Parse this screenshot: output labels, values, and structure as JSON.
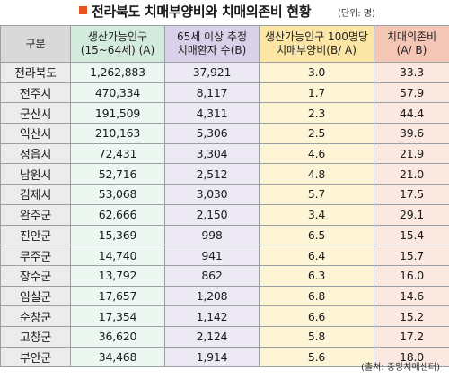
{
  "title": "전라북도 치매부양비와 치매의존비 현황",
  "unit": "(단위: 명)",
  "colors": {
    "title_marker": "#e8531f",
    "gu_header": "#d9d9d9",
    "pop_header": "#d3ebdc",
    "patients_header": "#d8d1e9",
    "ratio_header": "#fbe6a6",
    "dependency_header": "#f4c6b6"
  },
  "header": {
    "gu": "구분",
    "pop_line1": "생산가능인구",
    "pop_line2": "(15~64세) (A)",
    "patients_line1": "65세 이상 추정",
    "patients_line2": "치매환자 수(B)",
    "ratio_line1": "생산가능인구 100명당",
    "ratio_line2": "치매부양비(B/ A)",
    "dep_line1": "치매의존비",
    "dep_line2": "(A/ B)"
  },
  "rows": [
    {
      "region": "전라북도",
      "pop": "1,262,883",
      "patients": "37,921",
      "ratio": "3.0",
      "dependency": "33.3"
    },
    {
      "region": "전주시",
      "pop": "470,334",
      "patients": "8,117",
      "ratio": "1.7",
      "dependency": "57.9"
    },
    {
      "region": "군산시",
      "pop": "191,509",
      "patients": "4,311",
      "ratio": "2.3",
      "dependency": "44.4"
    },
    {
      "region": "익산시",
      "pop": "210,163",
      "patients": "5,306",
      "ratio": "2.5",
      "dependency": "39.6"
    },
    {
      "region": "정읍시",
      "pop": "72,431",
      "patients": "3,304",
      "ratio": "4.6",
      "dependency": "21.9"
    },
    {
      "region": "남원시",
      "pop": "52,716",
      "patients": "2,512",
      "ratio": "4.8",
      "dependency": "21.0"
    },
    {
      "region": "김제시",
      "pop": "53,068",
      "patients": "3,030",
      "ratio": "5.7",
      "dependency": "17.5"
    },
    {
      "region": "완주군",
      "pop": "62,666",
      "patients": "2,150",
      "ratio": "3.4",
      "dependency": "29.1"
    },
    {
      "region": "진안군",
      "pop": "15,369",
      "patients": "998",
      "ratio": "6.5",
      "dependency": "15.4"
    },
    {
      "region": "무주군",
      "pop": "14,740",
      "patients": "941",
      "ratio": "6.4",
      "dependency": "15.7"
    },
    {
      "region": "장수군",
      "pop": "13,792",
      "patients": "862",
      "ratio": "6.3",
      "dependency": "16.0"
    },
    {
      "region": "임실군",
      "pop": "17,657",
      "patients": "1,208",
      "ratio": "6.8",
      "dependency": "14.6"
    },
    {
      "region": "순창군",
      "pop": "17,354",
      "patients": "1,142",
      "ratio": "6.6",
      "dependency": "15.2"
    },
    {
      "region": "고창군",
      "pop": "36,620",
      "patients": "2,124",
      "ratio": "5.8",
      "dependency": "17.2"
    },
    {
      "region": "부안군",
      "pop": "34,468",
      "patients": "1,914",
      "ratio": "5.6",
      "dependency": "18.0"
    }
  ],
  "source": "(출처: 중앙치매센터)"
}
